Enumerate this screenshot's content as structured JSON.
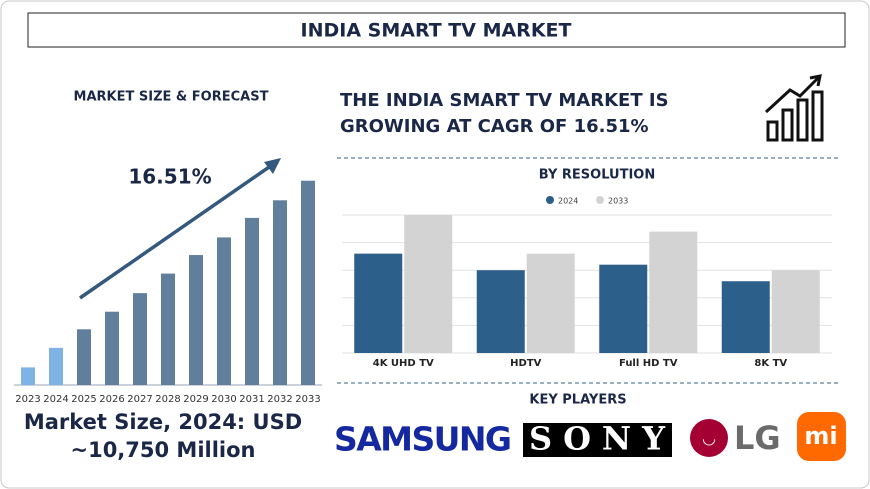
{
  "title": "INDIA SMART TV MARKET",
  "headline": [
    "THE INDIA SMART TV MARKET IS",
    "GROWING AT CAGR OF 16.51%"
  ],
  "market_size": [
    "Market Size, 2024: USD",
    "~10,750 Million"
  ],
  "key_players": {
    "title": "KEY PLAYERS",
    "names": [
      "SAMSUNG",
      "SONY",
      "LG",
      "mi"
    ]
  },
  "chart_data": [
    {
      "type": "bar",
      "title": "MARKET SIZE & FORECAST",
      "annotation": "16.51%",
      "categories": [
        "2023",
        "2024",
        "2025",
        "2026",
        "2027",
        "2028",
        "2029",
        "2030",
        "2031",
        "2032",
        "2033"
      ],
      "values": [
        18,
        38,
        57,
        75,
        94,
        114,
        133,
        151,
        171,
        189,
        209
      ],
      "colors": [
        "#7fb2e5",
        "#7fb2e5",
        "#5f7f9c",
        "#5f7f9c",
        "#5f7f9c",
        "#5f7f9c",
        "#5f7f9c",
        "#5f7f9c",
        "#5f7f9c",
        "#5f7f9c",
        "#5f7f9c"
      ],
      "ylim": [
        0,
        220
      ]
    },
    {
      "type": "grouped-bar",
      "title": "BY RESOLUTION",
      "categories": [
        "4K UHD TV",
        "HDTV",
        "Full HD TV",
        "8K TV"
      ],
      "series": [
        {
          "name": "2024",
          "color": "#2d5f8b",
          "values": [
            3.6,
            3.0,
            3.2,
            2.6
          ]
        },
        {
          "name": "2033",
          "color": "#d3d3d3",
          "values": [
            5.0,
            3.6,
            4.4,
            3.0
          ]
        }
      ],
      "ylim": [
        0,
        5
      ],
      "gridlines": [
        0,
        1,
        2,
        3,
        4,
        5
      ]
    }
  ]
}
